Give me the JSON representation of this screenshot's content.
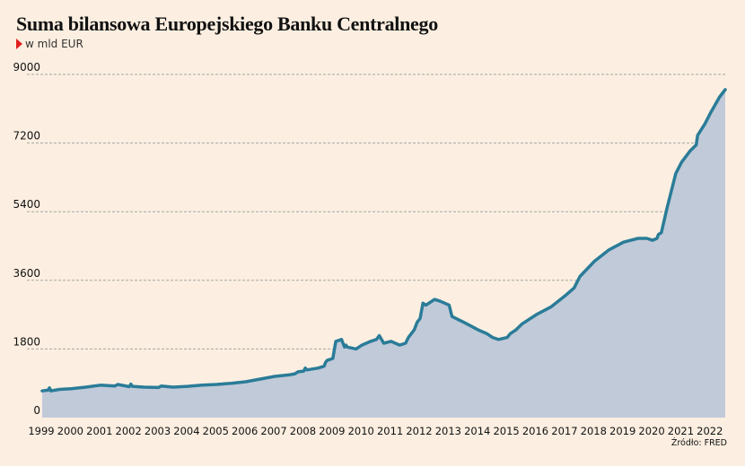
{
  "title": "Suma bilansowa Europejskiego Banku Centralnego",
  "subtitle": "w mld EUR",
  "source": "Źródło: FRED",
  "colors": {
    "background": "#fcefe1",
    "area_fill": "#c1cad9",
    "line": "#2a7c98",
    "grid": "#a5a5a5",
    "marker": "#e02020"
  },
  "chart_data": {
    "type": "area",
    "title": "Suma bilansowa Europejskiego Banku Centralnego",
    "ylabel": "w mld EUR",
    "xlim": [
      1999.0,
      2022.5
    ],
    "ylim": [
      0,
      9000
    ],
    "y_ticks": [
      0,
      1800,
      3600,
      5400,
      7200,
      9000
    ],
    "y_tick_labels": [
      "0",
      "1800",
      "3600",
      "5400",
      "7200",
      "9000"
    ],
    "x_ticks": [
      1999,
      2000,
      2001,
      2002,
      2003,
      2004,
      2005,
      2006,
      2007,
      2008,
      2009,
      2010,
      2011,
      2012,
      2013,
      2014,
      2015,
      2016,
      2017,
      2018,
      2019,
      2020,
      2021,
      2022
    ],
    "x_tick_labels": [
      "1999",
      "2000",
      "2001",
      "2002",
      "2003",
      "2004",
      "2005",
      "2006",
      "2007",
      "2008",
      "2009",
      "2010",
      "2011",
      "2012",
      "2013",
      "2014",
      "2015",
      "2016",
      "2017",
      "2018",
      "2019",
      "2020",
      "2021",
      "2022"
    ],
    "grid": true,
    "series": [
      {
        "x": [
          1999.0,
          1999.2,
          1999.25,
          1999.3,
          1999.6,
          2000.0,
          2000.5,
          2001.0,
          2001.5,
          2001.6,
          2002.0,
          2002.05,
          2002.1,
          2002.5,
          2003.0,
          2003.1,
          2003.5,
          2004.0,
          2004.5,
          2005.0,
          2005.5,
          2006.0,
          2006.5,
          2007.0,
          2007.5,
          2007.7,
          2007.8,
          2008.0,
          2008.05,
          2008.1,
          2008.5,
          2008.7,
          2008.75,
          2008.8,
          2009.0,
          2009.1,
          2009.3,
          2009.4,
          2009.45,
          2009.5,
          2009.8,
          2010.0,
          2010.3,
          2010.5,
          2010.6,
          2010.75,
          2011.0,
          2011.3,
          2011.5,
          2011.6,
          2011.8,
          2011.9,
          2012.0,
          2012.1,
          2012.2,
          2012.5,
          2012.7,
          2013.0,
          2013.1,
          2013.5,
          2014.0,
          2014.3,
          2014.5,
          2014.7,
          2015.0,
          2015.1,
          2015.3,
          2015.5,
          2016.0,
          2016.5,
          2017.0,
          2017.3,
          2017.5,
          2018.0,
          2018.5,
          2019.0,
          2019.5,
          2019.8,
          2020.0,
          2020.15,
          2020.2,
          2020.3,
          2020.5,
          2020.8,
          2021.0,
          2021.3,
          2021.5,
          2021.55,
          2021.8,
          2022.0,
          2022.3,
          2022.5
        ],
        "values": [
          700,
          720,
          780,
          700,
          740,
          760,
          800,
          850,
          830,
          870,
          810,
          880,
          820,
          800,
          790,
          830,
          800,
          820,
          850,
          870,
          900,
          940,
          1010,
          1080,
          1120,
          1150,
          1200,
          1220,
          1300,
          1250,
          1300,
          1350,
          1450,
          1500,
          1550,
          2000,
          2050,
          1850,
          1900,
          1850,
          1800,
          1900,
          2000,
          2050,
          2150,
          1950,
          2000,
          1900,
          1950,
          2100,
          2300,
          2500,
          2600,
          3000,
          2950,
          3100,
          3050,
          2950,
          2650,
          2500,
          2300,
          2200,
          2100,
          2050,
          2100,
          2200,
          2300,
          2450,
          2700,
          2900,
          3200,
          3400,
          3700,
          4100,
          4400,
          4600,
          4700,
          4700,
          4650,
          4700,
          4800,
          4850,
          5500,
          6400,
          6700,
          7000,
          7150,
          7400,
          7700,
          8000,
          8400,
          8600
        ]
      }
    ]
  }
}
